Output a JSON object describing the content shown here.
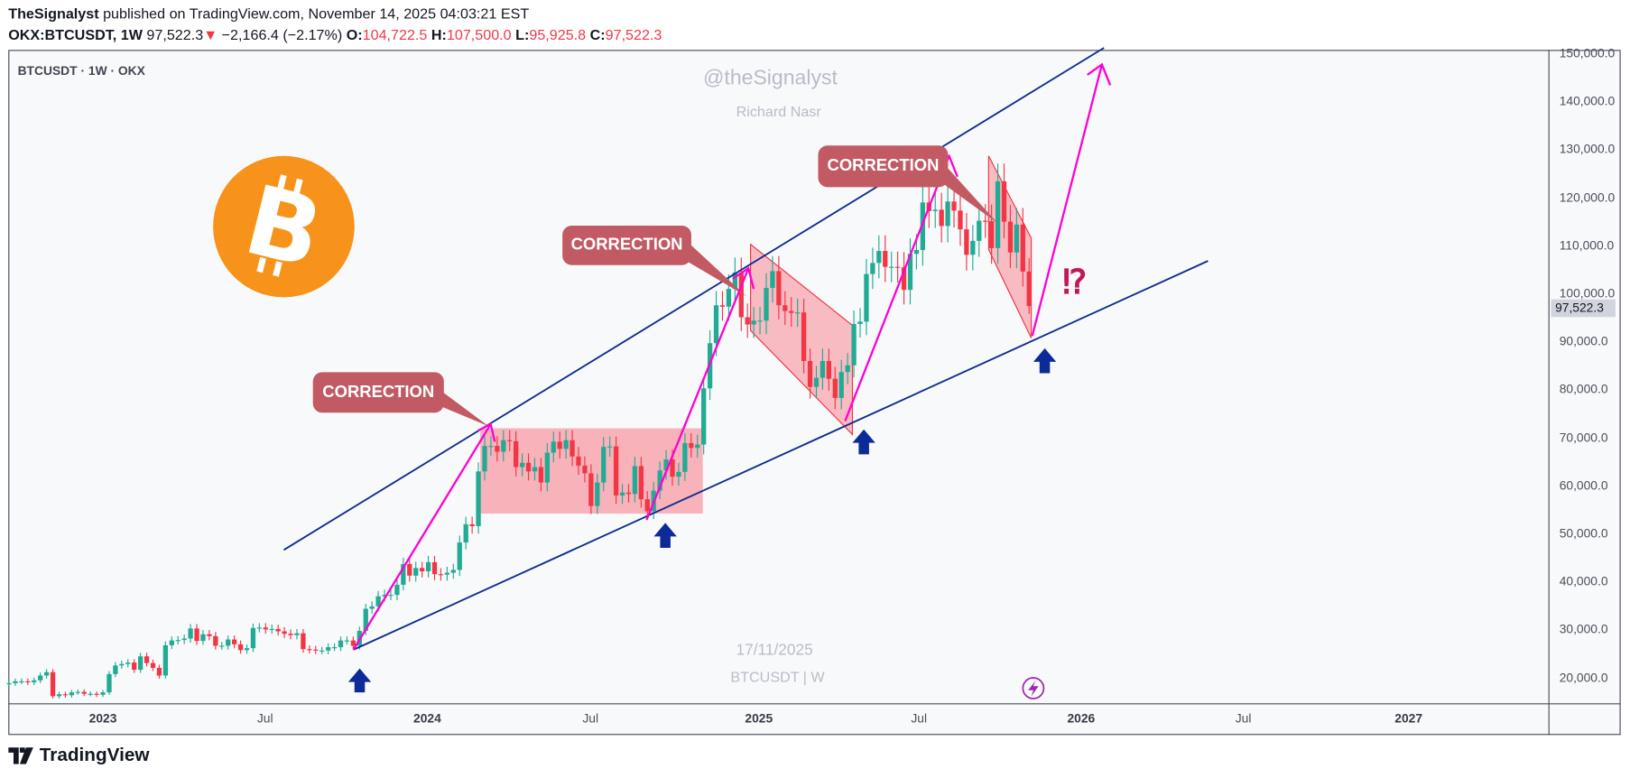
{
  "header": {
    "author": "TheSignalyst",
    "published": "published on TradingView.com, November 14, 2025 04:03:21 EST",
    "symbol": "OKX:BTCUSDT, 1W",
    "last": "97,522.3",
    "change": "−2,166.4 (−2.17%)",
    "o_label": "O:",
    "o": "104,722.5",
    "h_label": "H:",
    "h": "107,500.0",
    "l_label": "L:",
    "l": "95,925.8",
    "c_label": "C:",
    "c": "97,522.3"
  },
  "legend": "BTCUSDT · 1W · OKX",
  "watermark": {
    "handle": "@theSignalyst",
    "name": "Richard Nasr",
    "date": "17/11/2025",
    "symbol": "BTCUSDT | W"
  },
  "annotations": {
    "callouts": [
      "CORRECTION",
      "CORRECTION",
      "CORRECTION"
    ],
    "question": "⁉"
  },
  "last_price_label": "97,522.3",
  "footer": {
    "brand": "TradingView"
  },
  "icons": [
    "bitcoin-logo",
    "lightning-icon",
    "arrow-up-icon",
    "tradingview-logo"
  ],
  "colors": {
    "up": "#22ab94",
    "down": "#f23645",
    "channel": "#0d2a8f",
    "path": "#ff00d4",
    "zone": "#f7a6ae",
    "bitcoin": "#f7931a"
  },
  "chart_data": {
    "type": "candlestick",
    "interval": "1W",
    "start_week": "2022-09-19",
    "closes": [
      19000,
      19400,
      19400,
      19200,
      19600,
      20600,
      21300,
      16300,
      16700,
      16500,
      17100,
      17200,
      16800,
      16800,
      16600,
      17100,
      20900,
      22700,
      23000,
      23300,
      21800,
      24600,
      23200,
      22200,
      20600,
      26900,
      27900,
      28000,
      28300,
      30400,
      27800,
      29200,
      28800,
      26800,
      26800,
      28100,
      27100,
      25900,
      26300,
      30500,
      30600,
      30200,
      30300,
      29800,
      29300,
      29000,
      29400,
      26100,
      26000,
      25800,
      25800,
      26500,
      26500,
      27900,
      27900,
      26800,
      29900,
      34500,
      35000,
      37100,
      37400,
      37400,
      39500,
      43800,
      41400,
      43000,
      42300,
      44200,
      41700,
      41600,
      42000,
      42600,
      48300,
      52100,
      51700,
      63100,
      68400,
      68400,
      67200,
      69600,
      69400,
      64000,
      64900,
      63100,
      64000,
      60800,
      67000,
      69300,
      67800,
      69600,
      66200,
      64300,
      62700,
      55900,
      60800,
      68200,
      68300,
      58100,
      58700,
      58400,
      64200,
      57300,
      54800,
      59100,
      63300,
      65600,
      62000,
      63000,
      69000,
      68000,
      68700,
      80400,
      89800,
      97700,
      97400,
      101100,
      104500,
      95200,
      93700,
      94500,
      94500,
      101300,
      104800,
      97700,
      96500,
      96100,
      96200,
      86100,
      80700,
      82600,
      86100,
      82400,
      78400,
      83800,
      85200,
      93800,
      94300,
      104200,
      106500,
      109000,
      105700,
      105700,
      105600,
      100900,
      108400,
      109200,
      119100,
      117300,
      117600,
      114200,
      119300,
      117400,
      113500,
      108200,
      111100,
      115300,
      115200,
      109600,
      123500,
      115100,
      108700,
      114500,
      104722.5,
      97522.3
    ],
    "last_candle": {
      "open": 104722.5,
      "high": 107500.0,
      "low": 95925.8,
      "close": 97522.3
    },
    "y_ticks": [
      "150,000.0",
      "140,000.0",
      "130,000.0",
      "120,000.0",
      "110,000.0",
      "100,000.0",
      "90,000.0",
      "80,000.0",
      "70,000.0",
      "60,000.0",
      "50,000.0",
      "40,000.0",
      "30,000.0",
      "20,000.0"
    ],
    "x_ticks": [
      {
        "label": "2023",
        "year": true
      },
      {
        "label": "Jul"
      },
      {
        "label": "2024",
        "year": true
      },
      {
        "label": "Jul"
      },
      {
        "label": "2025",
        "year": true
      },
      {
        "label": "Jul"
      },
      {
        "label": "2026",
        "year": true
      },
      {
        "label": "Jul"
      },
      {
        "label": "2027",
        "year": true
      }
    ],
    "ylim": [
      17000,
      155000
    ],
    "scale": "linear",
    "grid": false
  }
}
